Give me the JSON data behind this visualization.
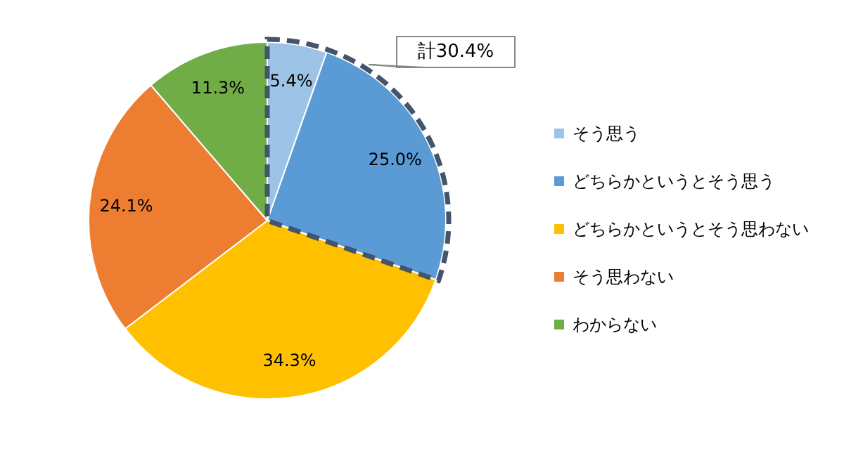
{
  "chart_data": {
    "type": "pie",
    "categories": [
      "そう思う",
      "どちらかというとそう思う",
      "どちらかというとそう思わない",
      "そう思わない",
      "わからない"
    ],
    "values": [
      5.4,
      25.0,
      34.3,
      24.1,
      11.3
    ],
    "colors": [
      "#9dc3e6",
      "#5b9bd5",
      "#ffc000",
      "#ed7d31",
      "#70ad47"
    ],
    "value_labels": [
      "5.4%",
      "25.0%",
      "34.3%",
      "24.1%",
      "11.3%"
    ],
    "legend": "right",
    "annotations": [
      "計30.4%"
    ]
  }
}
